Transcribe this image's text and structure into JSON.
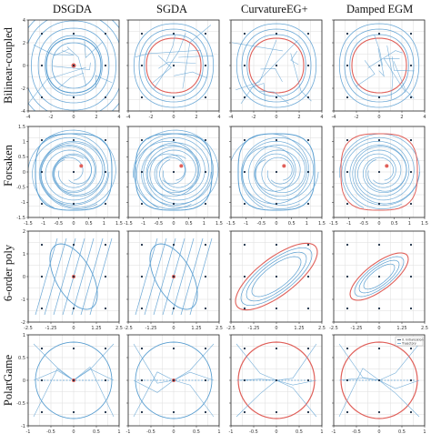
{
  "columns": [
    "DSGDA",
    "SGDA",
    "CurvatureEG+",
    "Damped EGM"
  ],
  "rows": [
    "Bilinear-coupled",
    "Forsaken",
    "6-order poly",
    "PolarGame"
  ],
  "colors": {
    "trajectory": "#5b9fd1",
    "limit": "#e0605a",
    "grid": "#dddddd",
    "frame": "#222222",
    "start": "#1a2d44"
  },
  "chart_data": [
    {
      "type": "line",
      "row": "Bilinear-coupled",
      "methods": [
        "DSGDA",
        "SGDA",
        "CurvatureEG+",
        "Damped EGM"
      ],
      "xlim": [
        -4,
        4
      ],
      "ylim": [
        -4,
        4
      ],
      "xticks": [
        "-4",
        "-2",
        "0",
        "2",
        "4"
      ],
      "yticks": [
        "4",
        "2",
        "0",
        "-2",
        "-4"
      ],
      "grid": true
    },
    {
      "type": "line",
      "row": "Forsaken",
      "methods": [
        "DSGDA",
        "SGDA",
        "CurvatureEG+",
        "Damped EGM"
      ],
      "xlim": [
        -1.5,
        1.5
      ],
      "ylim": [
        -1.5,
        1.5
      ],
      "xticks": [
        "-1.5",
        "-1",
        "-0.5",
        "0",
        "0.5",
        "1",
        "1.5"
      ],
      "yticks": [
        "1.5",
        "1",
        "0.5",
        "0",
        "-0.5",
        "-1",
        "-1.5"
      ],
      "grid": true
    },
    {
      "type": "line",
      "row": "6-order poly",
      "methods": [
        "DSGDA",
        "SGDA",
        "CurvatureEG+",
        "Damped EGM"
      ],
      "xlim": [
        -2.5,
        2.5
      ],
      "ylim": [
        -2.5,
        2.5
      ],
      "xticks": [
        "-2.5",
        "-1.25",
        "0",
        "1.25",
        "2.5"
      ],
      "yticks": [
        "2",
        "1",
        "0",
        "-1",
        "-2"
      ],
      "grid": true
    },
    {
      "type": "line",
      "row": "PolarGame",
      "methods": [
        "DSGDA",
        "SGDA",
        "CurvatureEG+",
        "Damped EGM"
      ],
      "xlim": [
        -1,
        1
      ],
      "ylim": [
        -1,
        1
      ],
      "xticks": [
        "-1",
        "-0.5",
        "0",
        "0.5",
        "1"
      ],
      "yticks": [
        "1",
        "0.5",
        "0",
        "-0.5",
        "-1"
      ],
      "grid": true,
      "legend": {
        "panel": "Damped EGM",
        "placement": "top-right",
        "entries": [
          "X. Initialization",
          "Trajectory"
        ]
      }
    }
  ]
}
